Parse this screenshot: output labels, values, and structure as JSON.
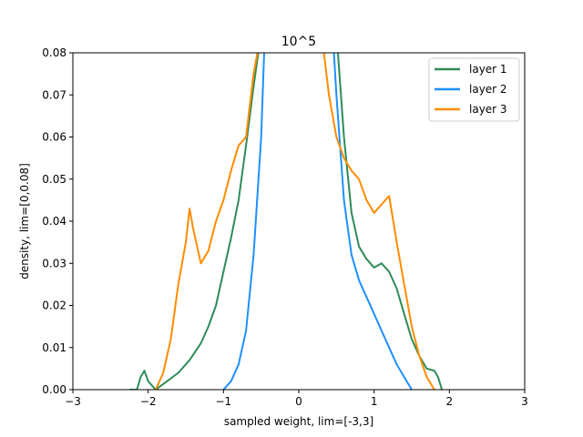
{
  "chart_data": {
    "type": "line",
    "title": "10^5",
    "xlabel": "sampled weight, lim=[-3,3]",
    "ylabel": "density, lim=[0,0.08]",
    "xlim": [
      -3,
      3
    ],
    "ylim": [
      0,
      0.08
    ],
    "x_ticks": [
      -3,
      -2,
      -1,
      0,
      1,
      2,
      3
    ],
    "x_tick_labels": [
      "−3",
      "−2",
      "−1",
      "0",
      "1",
      "2",
      "3"
    ],
    "y_ticks": [
      0.0,
      0.01,
      0.02,
      0.03,
      0.04,
      0.05,
      0.06,
      0.07,
      0.08
    ],
    "y_tick_labels": [
      "0.00",
      "0.01",
      "0.02",
      "0.03",
      "0.04",
      "0.05",
      "0.06",
      "0.07",
      "0.08"
    ],
    "grid": false,
    "legend_position": "top-right",
    "series": [
      {
        "name": "layer 1",
        "color": "#2e8b57",
        "x": [
          -2.25,
          -2.15,
          -2.1,
          -2.05,
          -2.0,
          -1.9,
          -1.75,
          -1.6,
          -1.45,
          -1.3,
          -1.2,
          -1.1,
          -1.0,
          -0.9,
          -0.8,
          -0.7,
          -0.6,
          -0.5,
          -0.4,
          0.4,
          0.5,
          0.6,
          0.7,
          0.8,
          0.9,
          1.0,
          1.1,
          1.2,
          1.3,
          1.4,
          1.5,
          1.6,
          1.7,
          1.8,
          1.85,
          1.9
        ],
        "y": [
          0.0,
          0.0,
          0.003,
          0.0045,
          0.002,
          0.0,
          0.002,
          0.004,
          0.007,
          0.011,
          0.015,
          0.02,
          0.028,
          0.036,
          0.045,
          0.058,
          0.072,
          0.085,
          0.085,
          0.085,
          0.085,
          0.06,
          0.042,
          0.034,
          0.031,
          0.029,
          0.03,
          0.028,
          0.024,
          0.018,
          0.012,
          0.008,
          0.005,
          0.0045,
          0.003,
          0.0
        ]
      },
      {
        "name": "layer 2",
        "color": "#1e90ff",
        "x": [
          -1.0,
          -0.9,
          -0.8,
          -0.7,
          -0.6,
          -0.5,
          -0.45,
          -0.4,
          0.4,
          0.45,
          0.5,
          0.6,
          0.7,
          0.8,
          0.9,
          1.0,
          1.1,
          1.2,
          1.3,
          1.4,
          1.5
        ],
        "y": [
          0.0,
          0.002,
          0.006,
          0.014,
          0.032,
          0.06,
          0.085,
          0.085,
          0.085,
          0.085,
          0.07,
          0.045,
          0.032,
          0.026,
          0.022,
          0.018,
          0.014,
          0.01,
          0.006,
          0.003,
          0.0
        ]
      },
      {
        "name": "layer 3",
        "color": "#ff8c00",
        "x": [
          -1.9,
          -1.8,
          -1.7,
          -1.6,
          -1.5,
          -1.45,
          -1.4,
          -1.3,
          -1.2,
          -1.1,
          -1.0,
          -0.9,
          -0.8,
          -0.7,
          -0.6,
          -0.5,
          -0.35,
          -0.3,
          0.25,
          0.3,
          0.4,
          0.5,
          0.6,
          0.7,
          0.8,
          0.9,
          1.0,
          1.1,
          1.2,
          1.3,
          1.4,
          1.5,
          1.6,
          1.7,
          1.8
        ],
        "y": [
          0.0,
          0.004,
          0.012,
          0.025,
          0.035,
          0.043,
          0.038,
          0.03,
          0.033,
          0.04,
          0.045,
          0.052,
          0.058,
          0.06,
          0.075,
          0.085,
          0.085,
          0.085,
          0.085,
          0.085,
          0.07,
          0.06,
          0.055,
          0.052,
          0.05,
          0.045,
          0.042,
          0.044,
          0.046,
          0.035,
          0.025,
          0.015,
          0.008,
          0.003,
          0.0
        ]
      }
    ]
  }
}
